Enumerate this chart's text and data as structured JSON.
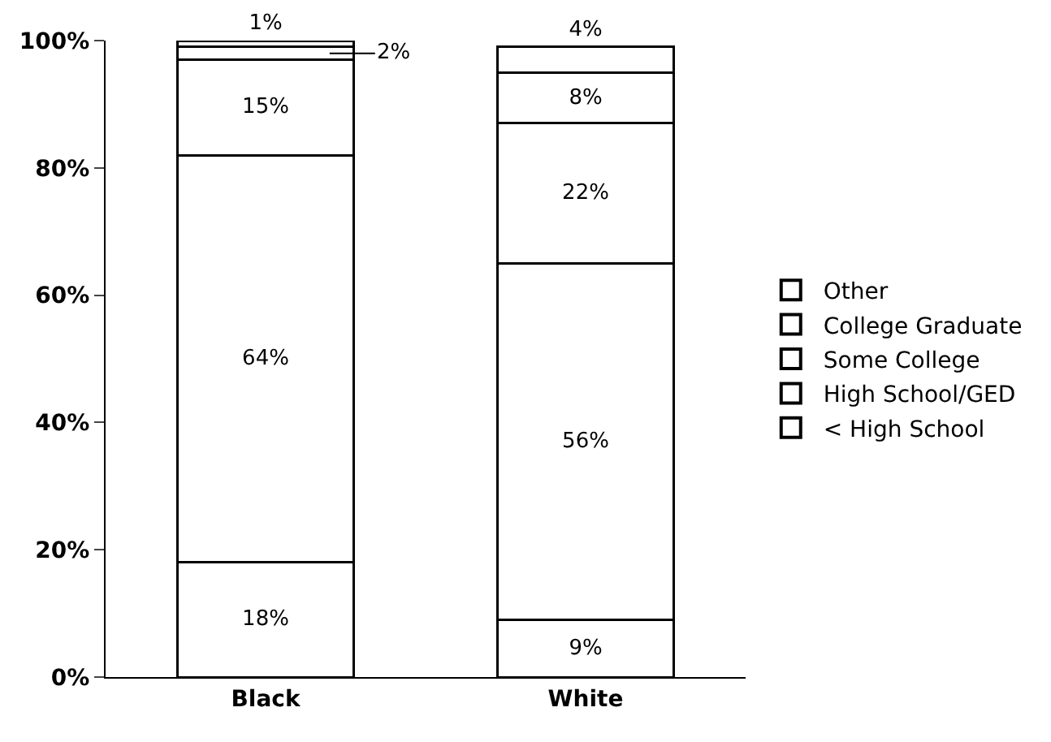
{
  "chart_data": {
    "type": "bar",
    "stacked": true,
    "categories": [
      "Black",
      "White"
    ],
    "series": [
      {
        "name": "< High School",
        "color": "#ffffff",
        "values": [
          18,
          9
        ],
        "value_labels": [
          "18%",
          "9%"
        ]
      },
      {
        "name": "High School/GED",
        "color": "#ffffff",
        "values": [
          64,
          56
        ],
        "value_labels": [
          "64%",
          "56%"
        ]
      },
      {
        "name": "Some College",
        "color": "#ffffff",
        "values": [
          15,
          22
        ],
        "value_labels": [
          "15%",
          "22%"
        ]
      },
      {
        "name": "College Graduate",
        "color": "#ffffff",
        "values": [
          2,
          8
        ],
        "value_labels": [
          "2%",
          "8%"
        ]
      },
      {
        "name": "Other",
        "color": "#ffffff",
        "values": [
          1,
          4
        ],
        "value_labels": [
          "1%",
          "4%"
        ]
      }
    ],
    "ylim": [
      0,
      100
    ],
    "yticks": [
      {
        "value": 0,
        "label": "0%"
      },
      {
        "value": 20,
        "label": "20%"
      },
      {
        "value": 40,
        "label": "40%"
      },
      {
        "value": 60,
        "label": "60%"
      },
      {
        "value": 80,
        "label": "80%"
      },
      {
        "value": 100,
        "label": "100%"
      }
    ],
    "grid": false,
    "legend": "right"
  }
}
